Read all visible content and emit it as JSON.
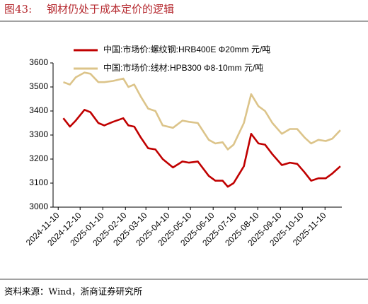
{
  "chart_data": {
    "type": "line",
    "figure_label": "图43:",
    "title": "钢材仍处于成本定价的逻辑",
    "source": "资料来源：Wind，浙商证券研究所",
    "x": [
      "2024-11-17",
      "2024-11-26",
      "2024-12-04",
      "2024-12-16",
      "2024-12-24",
      "2025-01-04",
      "2025-01-12",
      "2025-01-24",
      "2025-02-07",
      "2025-02-14",
      "2025-02-22",
      "2025-03-03",
      "2025-03-13",
      "2025-03-23",
      "2025-04-02",
      "2025-04-16",
      "2025-04-29",
      "2025-05-08",
      "2025-05-20",
      "2025-06-04",
      "2025-06-13",
      "2025-06-23",
      "2025-06-30",
      "2025-07-08",
      "2025-07-22",
      "2025-08-01",
      "2025-08-11",
      "2025-08-20",
      "2025-08-30",
      "2025-09-12",
      "2025-09-23",
      "2025-10-03",
      "2025-10-13",
      "2025-10-22",
      "2025-11-01",
      "2025-11-11",
      "2025-11-20",
      "2025-12-01"
    ],
    "series": [
      {
        "name": "中国:市场价:螺纹钢:HRB400E Φ20mm 元/吨",
        "color": "#c00000",
        "values": [
          3370,
          3335,
          3360,
          3405,
          3395,
          3350,
          3340,
          3355,
          3370,
          3340,
          3335,
          3290,
          3245,
          3240,
          3200,
          3165,
          3190,
          3185,
          3190,
          3130,
          3110,
          3110,
          3085,
          3100,
          3170,
          3305,
          3265,
          3260,
          3220,
          3175,
          3185,
          3180,
          3145,
          3110,
          3120,
          3120,
          3140,
          3170
        ]
      },
      {
        "name": "中国:市场价:线材:HPB300 Φ8-10mm 元/吨",
        "color": "#dcc48a",
        "values": [
          3520,
          3510,
          3540,
          3560,
          3555,
          3520,
          3520,
          3525,
          3535,
          3500,
          3510,
          3460,
          3410,
          3400,
          3340,
          3330,
          3360,
          3355,
          3350,
          3280,
          3265,
          3270,
          3240,
          3260,
          3350,
          3470,
          3420,
          3400,
          3350,
          3305,
          3325,
          3325,
          3290,
          3265,
          3280,
          3275,
          3285,
          3320
        ]
      }
    ],
    "xlim": [
      "2024-11-03",
      "2025-12-03"
    ],
    "xticks": [
      "2024-11-10",
      "2024-12-10",
      "2025-01-10",
      "2025-02-10",
      "2025-03-10",
      "2025-04-10",
      "2025-05-10",
      "2025-06-10",
      "2025-07-10",
      "2025-08-10",
      "2025-09-10",
      "2025-10-10",
      "2025-11-10"
    ],
    "ylim": [
      3000,
      3600
    ],
    "yticks": [
      3000,
      3100,
      3200,
      3300,
      3400,
      3500,
      3600
    ],
    "legend": "top-left"
  }
}
